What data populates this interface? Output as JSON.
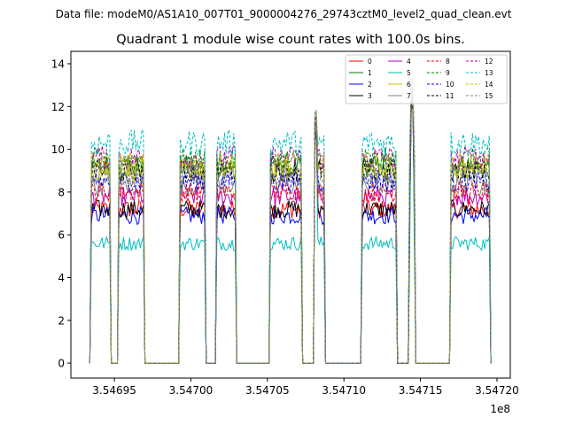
{
  "chart_data": {
    "type": "line",
    "suptitle": "Data file: modeM0/AS1A10_007T01_9000004276_29743cztM0_level2_quad_clean.evt",
    "title": "Quadrant 1 module wise count rates with 100.0s bins.",
    "xlabel": "",
    "ylabel": "",
    "x_offset_label": "1e8",
    "bin_seconds": 100,
    "xlim": [
      354692160,
      354720870
    ],
    "ylim": [
      -0.7,
      14.58
    ],
    "xticks": [
      354695000,
      354700000,
      354705000,
      354710000,
      354715000,
      354720000
    ],
    "xtick_labels": [
      "3.54695",
      "3.54700",
      "3.54705",
      "3.54710",
      "3.54715",
      "3.54720"
    ],
    "yticks": [
      0,
      2,
      4,
      6,
      8,
      10,
      12,
      14
    ],
    "ytick_labels": [
      "0",
      "2",
      "4",
      "6",
      "8",
      "10",
      "12",
      "14"
    ],
    "grid": false,
    "legend_placement": "top-right",
    "on_intervals": [
      [
        354693495,
        354694711
      ],
      [
        354695289,
        354696968
      ],
      [
        354699282,
        354700961
      ],
      [
        354701655,
        354702928
      ],
      [
        354705185,
        354707211
      ],
      [
        354708021,
        354708715
      ],
      [
        354711146,
        354713403
      ],
      [
        354714271,
        354714618
      ],
      [
        354716991,
        354719537
      ]
    ],
    "spikes": [
      {
        "x": 354708150,
        "value": 11.6
      },
      {
        "x": 354714450,
        "value": 13.0
      }
    ],
    "series": [
      {
        "name": "0",
        "color": "#ff0000",
        "dash": false,
        "mean_rate": 7.2
      },
      {
        "name": "1",
        "color": "#008000",
        "dash": false,
        "mean_rate": 9.2
      },
      {
        "name": "2",
        "color": "#0000ff",
        "dash": false,
        "mean_rate": 6.9
      },
      {
        "name": "3",
        "color": "#000000",
        "dash": false,
        "mean_rate": 7.2
      },
      {
        "name": "4",
        "color": "#bf00bf",
        "dash": false,
        "mean_rate": 7.8
      },
      {
        "name": "5",
        "color": "#00bfbf",
        "dash": false,
        "mean_rate": 5.6
      },
      {
        "name": "6",
        "color": "#bfbf00",
        "dash": false,
        "mean_rate": 9.0
      },
      {
        "name": "7",
        "color": "#808080",
        "dash": false,
        "mean_rate": 8.3
      },
      {
        "name": "8",
        "color": "#ff0000",
        "dash": true,
        "mean_rate": 8.0
      },
      {
        "name": "9",
        "color": "#008000",
        "dash": true,
        "mean_rate": 9.5
      },
      {
        "name": "10",
        "color": "#0000ff",
        "dash": true,
        "mean_rate": 8.5
      },
      {
        "name": "11",
        "color": "#000000",
        "dash": true,
        "mean_rate": 9.0
      },
      {
        "name": "12",
        "color": "#bf00bf",
        "dash": true,
        "mean_rate": 9.6
      },
      {
        "name": "13",
        "color": "#00bfbf",
        "dash": true,
        "mean_rate": 10.3
      },
      {
        "name": "14",
        "color": "#bfbf00",
        "dash": true,
        "mean_rate": 9.3
      },
      {
        "name": "15",
        "color": "#808080",
        "dash": true,
        "mean_rate": 8.8
      }
    ]
  }
}
